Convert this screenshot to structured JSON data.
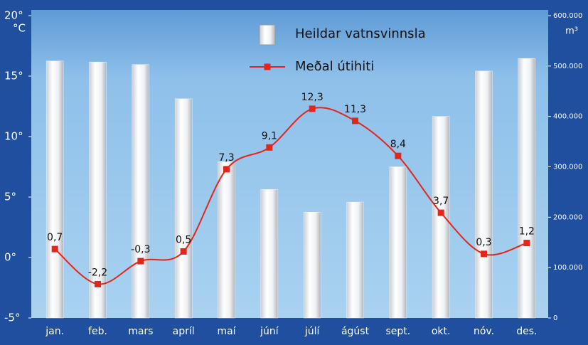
{
  "chart_data": {
    "type": "bar_line",
    "ylabel": "°C",
    "y2label": "m³",
    "categories": [
      "jan.",
      "feb.",
      "mars",
      "apríl",
      "maí",
      "júní",
      "júlí",
      "ágúst",
      "sept.",
      "okt.",
      "nóv.",
      "des."
    ],
    "series": [
      {
        "name": "Heildar vatnsvinnsla",
        "type": "bar",
        "axis": "y2",
        "color": "#f2f4f6",
        "values": [
          510000,
          508000,
          503000,
          435000,
          310000,
          255000,
          210000,
          230000,
          300000,
          400000,
          490000,
          515000
        ]
      },
      {
        "name": "Meðal útihiti",
        "type": "line",
        "axis": "y",
        "color": "#e3261b",
        "values": [
          0.7,
          -2.2,
          -0.3,
          0.5,
          7.3,
          9.1,
          12.3,
          11.3,
          8.4,
          3.7,
          0.3,
          1.2
        ],
        "value_labels": [
          "0,7",
          "-2,2",
          "-0,3",
          "0,5",
          "7,3",
          "9,1",
          "12,3",
          "11,3",
          "8,4",
          "3,7",
          "0,3",
          "1,2"
        ]
      }
    ],
    "ylim": [
      -5,
      20
    ],
    "yticks": [
      {
        "value": -5,
        "label": "-5°"
      },
      {
        "value": 0,
        "label": "0°"
      },
      {
        "value": 5,
        "label": "5°"
      },
      {
        "value": 10,
        "label": "10°"
      },
      {
        "value": 15,
        "label": "15°"
      },
      {
        "value": 20,
        "label": "20°"
      }
    ],
    "y2lim": [
      0,
      600000
    ],
    "y2ticks": [
      0,
      {
        "value": 100000,
        "label": "100.000"
      },
      {
        "value": 200000,
        "label": "200.000"
      },
      {
        "value": 300000,
        "label": "300.000"
      },
      {
        "value": 400000,
        "label": "400.000"
      },
      {
        "value": 500000,
        "label": "500.000"
      },
      {
        "value": 600000,
        "label": "600.000"
      }
    ],
    "legend": "upper center",
    "grid": false
  }
}
